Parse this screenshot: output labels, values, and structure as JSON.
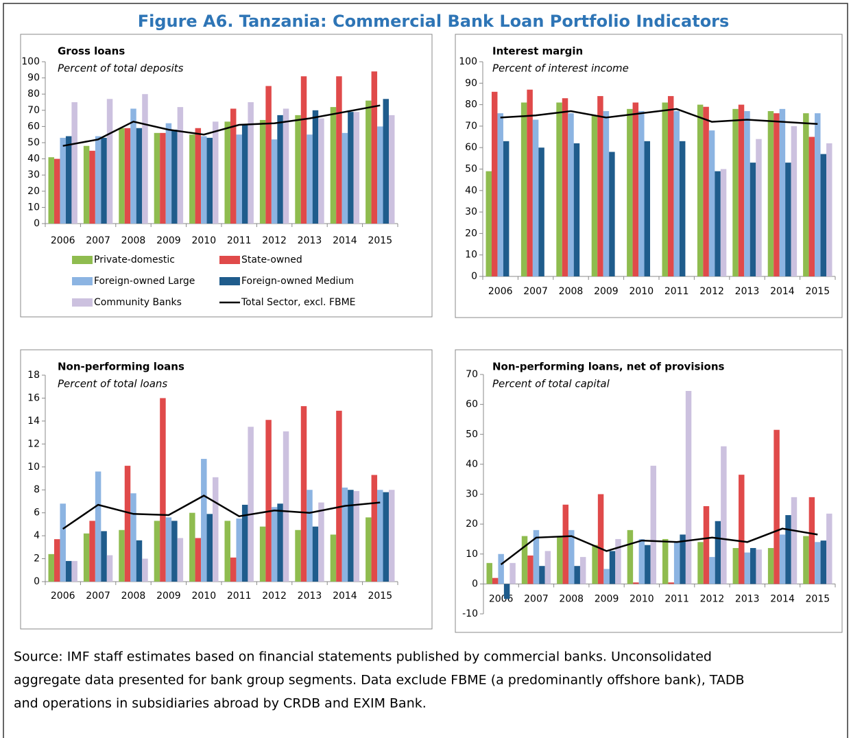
{
  "title": "Figure A6. Tanzania: Commercial Bank Loan Portfolio Indicators",
  "chart_data": [
    {
      "type": "bar",
      "title": "Gross loans",
      "subtitle": "Percent of total deposits",
      "categories": [
        "2006",
        "2007",
        "2008",
        "2009",
        "2010",
        "2011",
        "2012",
        "2013",
        "2014",
        "2015"
      ],
      "ylim": [
        0,
        100
      ],
      "yticks": [
        0,
        10,
        20,
        30,
        40,
        50,
        60,
        70,
        80,
        90,
        100
      ],
      "legend": true,
      "series": [
        {
          "name": "Private-domestic",
          "type": "bar",
          "color": "#8fbc4f",
          "values": [
            41,
            48,
            59,
            56,
            55,
            63,
            64,
            67,
            72,
            76
          ]
        },
        {
          "name": "State-owned",
          "type": "bar",
          "color": "#e04a4a",
          "values": [
            40,
            45,
            59,
            56,
            59,
            71,
            85,
            91,
            91,
            94
          ]
        },
        {
          "name": "Foreign-owned Large",
          "type": "bar",
          "color": "#8cb4e2",
          "values": [
            53,
            54,
            71,
            62,
            54,
            55,
            52,
            55,
            56,
            60
          ]
        },
        {
          "name": "Foreign-owned Medium",
          "type": "bar",
          "color": "#1f5c8c",
          "values": [
            54,
            53,
            59,
            58,
            53,
            61,
            67,
            70,
            69,
            77
          ]
        },
        {
          "name": "Community Banks",
          "type": "bar",
          "color": "#ccc1df",
          "values": [
            75,
            77,
            80,
            72,
            63,
            75,
            71,
            65,
            69,
            67
          ]
        },
        {
          "name": "Total Sector, excl. FBME",
          "type": "line",
          "color": "#000000",
          "values": [
            48,
            52,
            63,
            58,
            55,
            61,
            62,
            65,
            69,
            73
          ]
        }
      ]
    },
    {
      "type": "bar",
      "title": "Interest margin",
      "subtitle": "Percent of interest income",
      "categories": [
        "2006",
        "2007",
        "2008",
        "2009",
        "2010",
        "2011",
        "2012",
        "2013",
        "2014",
        "2015"
      ],
      "ylim": [
        0,
        100
      ],
      "yticks": [
        0,
        10,
        20,
        30,
        40,
        50,
        60,
        70,
        80,
        90,
        100
      ],
      "legend": false,
      "series": [
        {
          "type": "bar",
          "color": "#8fbc4f",
          "values": [
            49,
            81,
            81,
            75,
            78,
            81,
            80,
            78,
            77,
            76
          ]
        },
        {
          "type": "bar",
          "color": "#e04a4a",
          "values": [
            86,
            87,
            83,
            84,
            81,
            84,
            79,
            80,
            76,
            65
          ]
        },
        {
          "type": "bar",
          "color": "#8cb4e2",
          "values": [
            76,
            73,
            76,
            77,
            77,
            77,
            68,
            77,
            78,
            76
          ]
        },
        {
          "type": "bar",
          "color": "#1f5c8c",
          "values": [
            63,
            60,
            62,
            58,
            63,
            63,
            49,
            53,
            53,
            57
          ]
        },
        {
          "type": "bar",
          "color": "#ccc1df",
          "values": [
            null,
            null,
            null,
            null,
            null,
            null,
            50,
            64,
            70,
            62
          ]
        },
        {
          "type": "line",
          "color": "#000000",
          "values": [
            74,
            75,
            77,
            74,
            76,
            78,
            72,
            73,
            72,
            71
          ]
        }
      ]
    },
    {
      "type": "bar",
      "title": "Non-performing loans",
      "subtitle": "Percent of total loans",
      "categories": [
        "2006",
        "2007",
        "2008",
        "2009",
        "2010",
        "2011",
        "2012",
        "2013",
        "2014",
        "2015"
      ],
      "ylim": [
        0,
        18
      ],
      "yticks": [
        0,
        2,
        4,
        6,
        8,
        10,
        12,
        14,
        16,
        18
      ],
      "legend": false,
      "series": [
        {
          "type": "bar",
          "color": "#8fbc4f",
          "values": [
            2.4,
            4.2,
            4.5,
            5.3,
            6.0,
            5.3,
            4.8,
            4.5,
            4.1,
            5.6
          ]
        },
        {
          "type": "bar",
          "color": "#e04a4a",
          "values": [
            3.7,
            5.3,
            10.1,
            16.0,
            3.8,
            2.1,
            14.1,
            15.3,
            14.9,
            9.3
          ]
        },
        {
          "type": "bar",
          "color": "#8cb4e2",
          "values": [
            6.8,
            9.6,
            7.7,
            5.6,
            10.7,
            5.5,
            6.5,
            8.0,
            8.2,
            8.0
          ]
        },
        {
          "type": "bar",
          "color": "#1f5c8c",
          "values": [
            1.8,
            4.4,
            3.6,
            5.3,
            5.9,
            6.7,
            6.8,
            4.8,
            8.0,
            7.8
          ]
        },
        {
          "type": "bar",
          "color": "#ccc1df",
          "values": [
            1.8,
            2.3,
            2.0,
            3.8,
            9.1,
            13.5,
            13.1,
            6.9,
            7.9,
            8.0
          ]
        },
        {
          "type": "line",
          "color": "#000000",
          "values": [
            4.6,
            6.7,
            5.9,
            5.8,
            7.5,
            5.7,
            6.2,
            6.0,
            6.6,
            6.9
          ]
        }
      ]
    },
    {
      "type": "bar",
      "title": "Non-performing loans, net of provisions",
      "subtitle": "Percent of total capital",
      "categories": [
        "2006",
        "2007",
        "2008",
        "2009",
        "2010",
        "2011",
        "2012",
        "2013",
        "2014",
        "2015"
      ],
      "ylim": [
        -10,
        70
      ],
      "yticks": [
        -10,
        0,
        10,
        20,
        30,
        40,
        50,
        60,
        70
      ],
      "legend": false,
      "series": [
        {
          "type": "bar",
          "color": "#8fbc4f",
          "values": [
            7,
            16,
            16,
            13,
            18,
            15,
            14,
            12,
            12,
            16
          ]
        },
        {
          "type": "bar",
          "color": "#e04a4a",
          "values": [
            2,
            9.5,
            26.5,
            30,
            0.5,
            0.5,
            26,
            36.5,
            51.5,
            29
          ]
        },
        {
          "type": "bar",
          "color": "#8cb4e2",
          "values": [
            10,
            18,
            18,
            5,
            15,
            14,
            9,
            10.5,
            16.5,
            14
          ]
        },
        {
          "type": "bar",
          "color": "#1f5c8c",
          "values": [
            -5,
            6,
            6,
            11,
            13,
            16.5,
            21,
            12,
            23,
            14.5
          ]
        },
        {
          "type": "bar",
          "color": "#ccc1df",
          "values": [
            7,
            11,
            9,
            15,
            39.5,
            64.5,
            46,
            11.5,
            29,
            23.5
          ]
        },
        {
          "type": "line",
          "color": "#000000",
          "values": [
            6.5,
            15.5,
            16,
            11,
            14.5,
            14,
            15.5,
            14,
            18.5,
            16.5
          ]
        }
      ]
    }
  ],
  "source": [
    "Source: IMF staff estimates based on financial statements published by commercial banks. Unconsolidated",
    "aggregate data presented for bank group segments. Data exclude FBME (a predominantly offshore bank), TADB",
    "and operations in subsidiaries abroad by CRDB and EXIM Bank."
  ]
}
